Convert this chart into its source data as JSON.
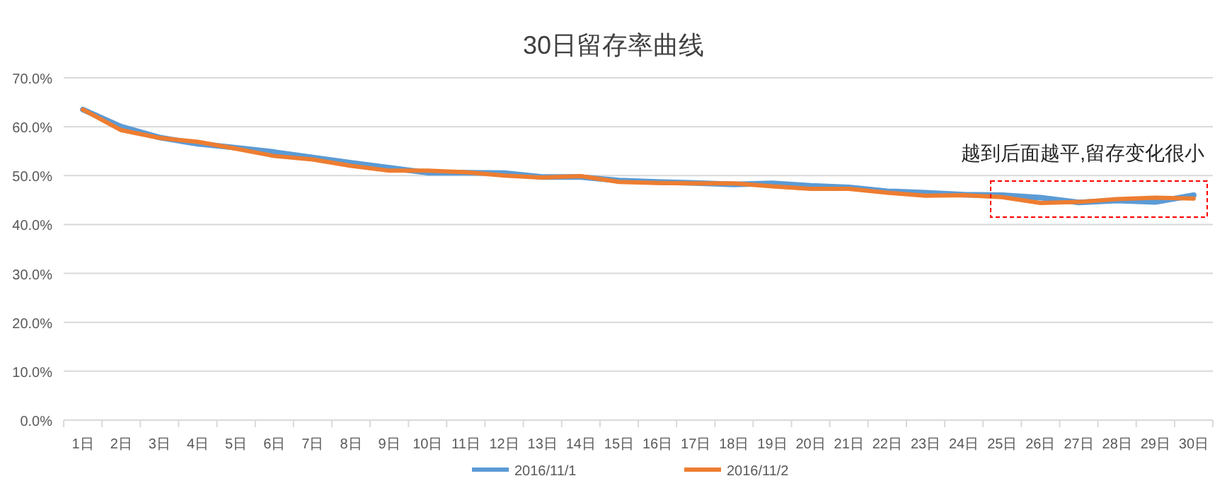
{
  "chart_data": {
    "type": "line",
    "title": "30日留存率曲线",
    "categories": [
      "1日",
      "2日",
      "3日",
      "4日",
      "5日",
      "6日",
      "7日",
      "8日",
      "9日",
      "10日",
      "11日",
      "12日",
      "13日",
      "14日",
      "15日",
      "16日",
      "17日",
      "18日",
      "19日",
      "20日",
      "21日",
      "22日",
      "23日",
      "24日",
      "25日",
      "26日",
      "27日",
      "28日",
      "29日",
      "30日"
    ],
    "series": [
      {
        "name": "2016/11/1",
        "color": "#5b9bd5",
        "values": [
          63.5,
          60.0,
          57.8,
          56.5,
          55.7,
          54.8,
          53.7,
          52.6,
          51.6,
          50.6,
          50.6,
          50.5,
          49.7,
          49.7,
          49.0,
          48.7,
          48.5,
          48.2,
          48.4,
          47.9,
          47.6,
          46.8,
          46.5,
          46.1,
          46.0,
          45.5,
          44.5,
          44.9,
          44.6,
          46.0
        ]
      },
      {
        "name": "2016/11/2",
        "color": "#ed7d31",
        "values": [
          63.5,
          59.3,
          57.7,
          56.9,
          55.5,
          54.0,
          53.3,
          52.0,
          51.0,
          51.0,
          50.7,
          50.0,
          49.6,
          49.9,
          48.7,
          48.5,
          48.4,
          48.4,
          47.8,
          47.3,
          47.3,
          46.5,
          45.9,
          46.0,
          45.6,
          44.4,
          44.6,
          45.2,
          45.5,
          45.3
        ]
      }
    ],
    "ylim": [
      0,
      70
    ],
    "yticks": [
      {
        "value": 0,
        "label": "0.0%"
      },
      {
        "value": 10,
        "label": "10.0%"
      },
      {
        "value": 20,
        "label": "20.0%"
      },
      {
        "value": 30,
        "label": "30.0%"
      },
      {
        "value": 40,
        "label": "40.0%"
      },
      {
        "value": 50,
        "label": "50.0%"
      },
      {
        "value": 60,
        "label": "60.0%"
      },
      {
        "value": 70,
        "label": "70.0%"
      }
    ],
    "grid": "y",
    "legend": "bottom",
    "marker": "none",
    "line_style": "solid",
    "annotations": [
      "越到后面越平,留存变化很小"
    ]
  }
}
